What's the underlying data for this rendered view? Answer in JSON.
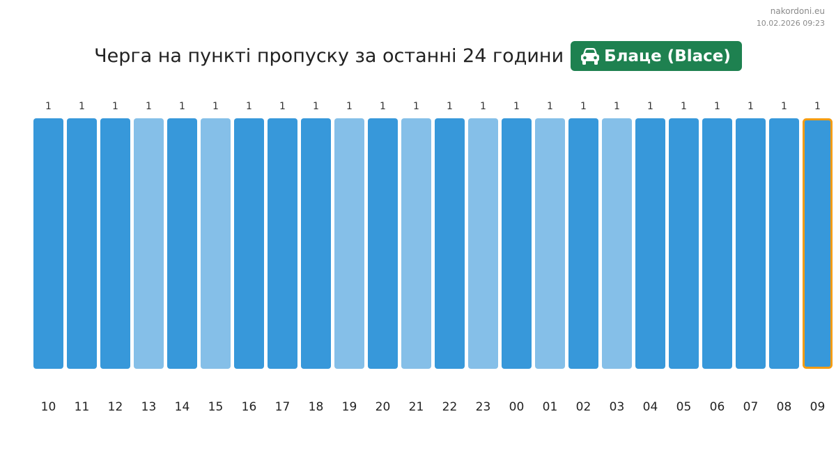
{
  "site": "nakordoni.eu",
  "timestamp": "10.02.2026 09:23",
  "title": "Черга на пункті пропуску за останні 24 години",
  "badge": {
    "icon": "car-icon",
    "label": "Блаце (Blace)",
    "color": "#1e8150"
  },
  "colors": {
    "bar_dark": "#3798da",
    "bar_light": "#85bfe8",
    "highlight_border": "#f39c12"
  },
  "chart_data": {
    "type": "bar",
    "title": "Черга на пункті пропуску за останні 24 години",
    "categories": [
      "10",
      "11",
      "12",
      "13",
      "14",
      "15",
      "16",
      "17",
      "18",
      "19",
      "20",
      "21",
      "22",
      "23",
      "00",
      "01",
      "02",
      "03",
      "04",
      "05",
      "06",
      "07",
      "08",
      "09"
    ],
    "values": [
      1,
      1,
      1,
      1,
      1,
      1,
      1,
      1,
      1,
      1,
      1,
      1,
      1,
      1,
      1,
      1,
      1,
      1,
      1,
      1,
      1,
      1,
      1,
      1
    ],
    "shades": [
      "dark",
      "dark",
      "dark",
      "light",
      "dark",
      "light",
      "dark",
      "dark",
      "dark",
      "light",
      "dark",
      "light",
      "dark",
      "light",
      "dark",
      "light",
      "dark",
      "light",
      "dark",
      "dark",
      "dark",
      "dark",
      "dark",
      "dark"
    ],
    "highlighted_category": "09",
    "ylim": [
      0,
      1
    ],
    "grid": false,
    "legend": "none"
  }
}
